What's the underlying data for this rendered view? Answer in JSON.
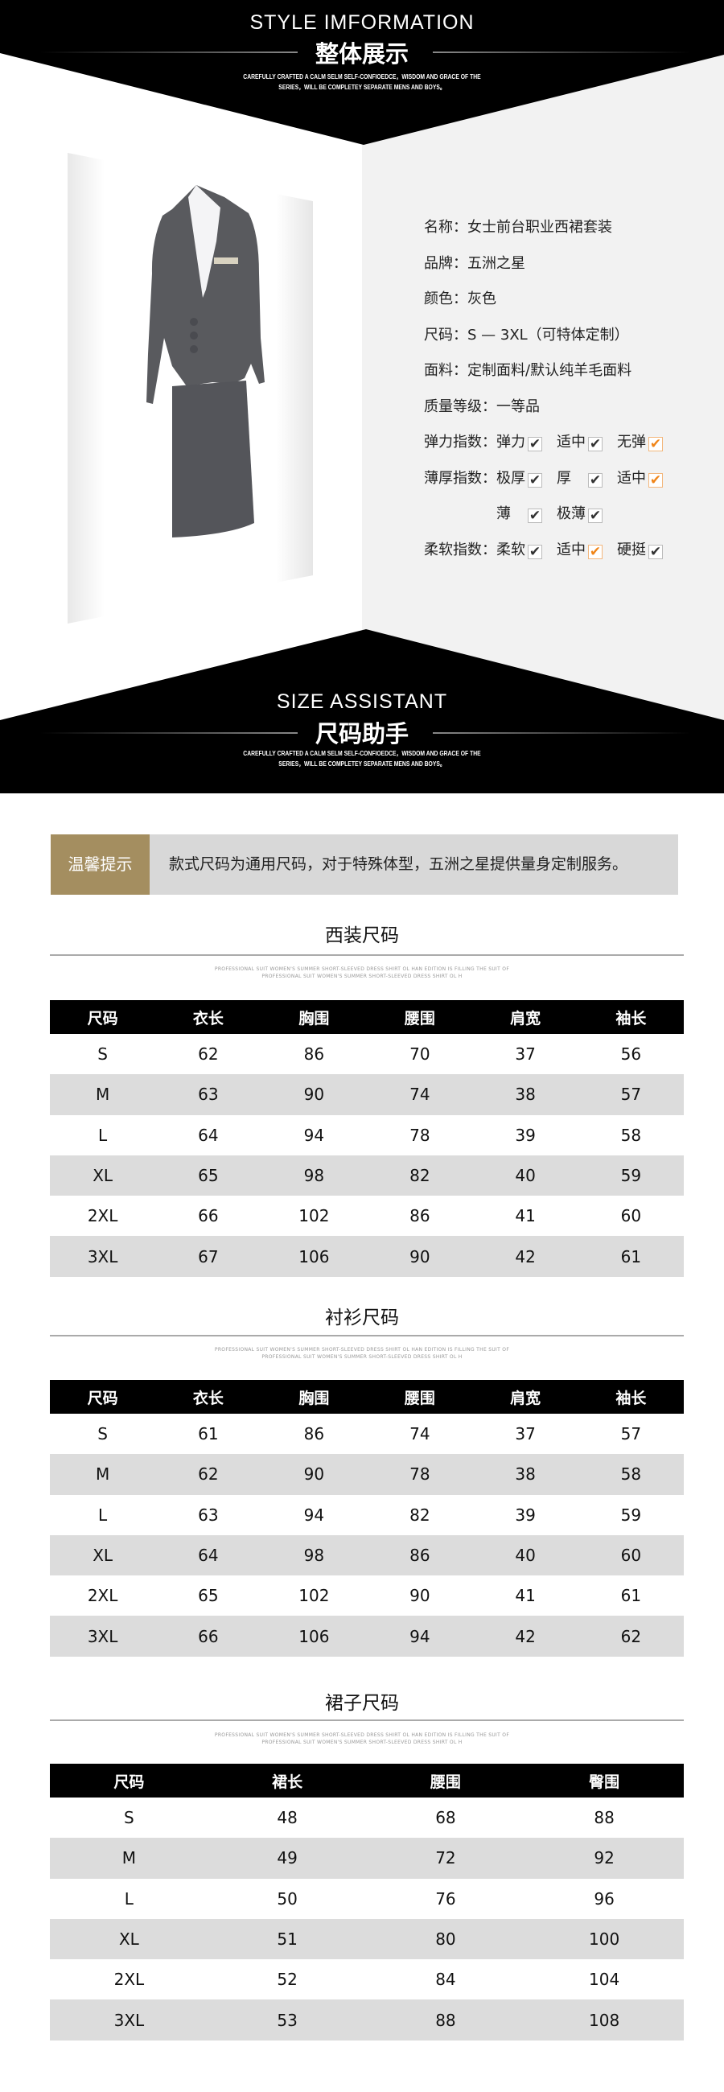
{
  "style_section": {
    "title_en": "STYLE IMFORMATION",
    "title_cn": "整体展示",
    "tagline_1": "CAREFULLY CRAFTED A CALM SELM SELF-CONFIOEDCE，WISDOM AND GRACE OF THE",
    "tagline_2": "SERIES，WILL BE COMPLETEY SEPARATE MENS AND BOYS。"
  },
  "product": {
    "image": "grey-womens-suit-jacket-and-skirt",
    "name": "名称：女士前台职业西裙套装",
    "brand": "品牌：五洲之星",
    "color": "颜色：灰色",
    "size": "尺码：S — 3XL（可特体定制）",
    "fabric": "面料：定制面料/默认纯羊毛面料",
    "grade": "质量等级：一等品",
    "elasticity": {
      "label": "弹力指数：",
      "options": [
        {
          "text": "弹力",
          "checked": false
        },
        {
          "text": "适中",
          "checked": false
        },
        {
          "text": "无弹",
          "checked": true
        }
      ]
    },
    "thickness": {
      "label": "薄厚指数：",
      "options": [
        {
          "text": "极厚",
          "checked": false
        },
        {
          "text": "厚",
          "checked": false
        },
        {
          "text": "适中",
          "checked": true
        },
        {
          "text": "薄",
          "checked": false
        },
        {
          "text": "极薄",
          "checked": false
        }
      ]
    },
    "softness": {
      "label": "柔软指数：",
      "options": [
        {
          "text": "柔软",
          "checked": false
        },
        {
          "text": "适中",
          "checked": true
        },
        {
          "text": "硬挺",
          "checked": false
        }
      ]
    },
    "check_color": "#f08519"
  },
  "size_section": {
    "title_en": "SIZE ASSISTANT",
    "title_cn": "尺码助手",
    "tagline_1": "CAREFULLY CRAFTED A CALM SELM SELF-CONFIOEDCE，WISDOM AND GRACE OF THE",
    "tagline_2": "SERIES，WILL BE COMPLETEY SEPARATE MENS AND BOYS。"
  },
  "tip": {
    "label": "温馨提示",
    "text": "款式尺码为通用尺码，对于特殊体型，五洲之星提供量身定制服务。",
    "label_color": "#a48e60"
  },
  "tables": [
    {
      "title": "西装尺码",
      "subtitle_1": "PROFESSIONAL SUIT WOMEN'S SUMMER SHORT-SLEEVED DRESS SHIRT OL HAN EDITION IS FILLING THE SUIT OF",
      "subtitle_2": "PROFESSIONAL SUIT WOMEN'S SUMMER SHORT-SLEEVED DRESS SHIRT OL H",
      "headers": [
        "尺码",
        "衣长",
        "胸围",
        "腰围",
        "肩宽",
        "袖长"
      ],
      "rows": [
        [
          "S",
          "62",
          "86",
          "70",
          "37",
          "56"
        ],
        [
          "M",
          "63",
          "90",
          "74",
          "38",
          "57"
        ],
        [
          "L",
          "64",
          "94",
          "78",
          "39",
          "58"
        ],
        [
          "XL",
          "65",
          "98",
          "82",
          "40",
          "59"
        ],
        [
          "2XL",
          "66",
          "102",
          "86",
          "41",
          "60"
        ],
        [
          "3XL",
          "67",
          "106",
          "90",
          "42",
          "61"
        ]
      ]
    },
    {
      "title": "衬衫尺码",
      "subtitle_1": "PROFESSIONAL SUIT WOMEN'S SUMMER SHORT-SLEEVED DRESS SHIRT OL HAN EDITION IS FILLING THE SUIT OF",
      "subtitle_2": "PROFESSIONAL SUIT WOMEN'S SUMMER SHORT-SLEEVED DRESS SHIRT OL H",
      "headers": [
        "尺码",
        "衣长",
        "胸围",
        "腰围",
        "肩宽",
        "袖长"
      ],
      "rows": [
        [
          "S",
          "61",
          "86",
          "74",
          "37",
          "57"
        ],
        [
          "M",
          "62",
          "90",
          "78",
          "38",
          "58"
        ],
        [
          "L",
          "63",
          "94",
          "82",
          "39",
          "59"
        ],
        [
          "XL",
          "64",
          "98",
          "86",
          "40",
          "60"
        ],
        [
          "2XL",
          "65",
          "102",
          "90",
          "41",
          "61"
        ],
        [
          "3XL",
          "66",
          "106",
          "94",
          "42",
          "62"
        ]
      ]
    },
    {
      "title": "裙子尺码",
      "subtitle_1": "PROFESSIONAL SUIT WOMEN'S SUMMER SHORT-SLEEVED DRESS SHIRT OL HAN EDITION IS FILLING THE SUIT OF",
      "subtitle_2": "PROFESSIONAL SUIT WOMEN'S SUMMER SHORT-SLEEVED DRESS SHIRT OL H",
      "headers": [
        "尺码",
        "裙长",
        "腰围",
        "臀围"
      ],
      "rows": [
        [
          "S",
          "48",
          "68",
          "88"
        ],
        [
          "M",
          "49",
          "72",
          "92"
        ],
        [
          "L",
          "50",
          "76",
          "96"
        ],
        [
          "XL",
          "51",
          "80",
          "100"
        ],
        [
          "2XL",
          "52",
          "84",
          "104"
        ],
        [
          "3XL",
          "53",
          "88",
          "108"
        ]
      ]
    }
  ]
}
